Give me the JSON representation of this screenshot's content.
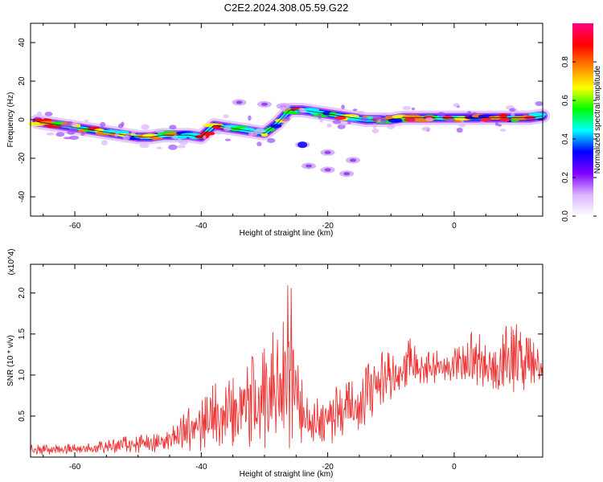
{
  "figure": {
    "title": "C2E2.2024.308.05.59.G22"
  },
  "chart_data": [
    {
      "type": "heatmap",
      "xlabel": "Height of straight line (km)",
      "ylabel": "Frequency (Hz)",
      "xlim": [
        -67,
        14
      ],
      "ylim": [
        -50,
        50
      ],
      "xticks": [
        -60,
        -40,
        -20,
        0
      ],
      "yticks": [
        -40,
        -20,
        0,
        20,
        40
      ],
      "colorbar": {
        "label": "Normalized spectral amplitude",
        "range": [
          0,
          1
        ],
        "ticks": [
          "0.0",
          "0.2",
          "0.4",
          "0.6",
          "0.8"
        ],
        "colormap": [
          "#ffffff",
          "#d9b3ff",
          "#8000ff",
          "#0000ff",
          "#00ffff",
          "#00ff00",
          "#ffff00",
          "#ff8000",
          "#ff0000",
          "#ff0080"
        ]
      },
      "main_band": {
        "x": [
          -66,
          -64,
          -62,
          -60,
          -58,
          -56,
          -54,
          -52,
          -50,
          -48,
          -46,
          -44,
          -42,
          -40,
          -38,
          -36,
          -34,
          -32,
          -30,
          -28,
          -26,
          -24,
          -22,
          -20,
          -18,
          -16,
          -14,
          -12,
          -10,
          -8,
          -6,
          -4,
          -2,
          0,
          2,
          4,
          6,
          8,
          10,
          12,
          14
        ],
        "frequency": [
          -1,
          -2,
          -3,
          -4,
          -5,
          -6,
          -7,
          -8,
          -9,
          -9,
          -8,
          -8,
          -8,
          -9,
          -3,
          -4,
          -5,
          -6,
          -7,
          -2,
          5,
          5,
          4,
          3,
          2,
          1,
          0,
          0,
          0,
          1,
          1,
          1,
          1,
          1,
          1,
          1,
          1,
          1,
          1,
          1,
          2
        ]
      },
      "weak_features": [
        {
          "x": [
            -34,
            -30,
            -27
          ],
          "frequency": [
            9,
            8,
            7
          ]
        },
        {
          "x": [
            -24,
            -20,
            -16
          ],
          "frequency": [
            -13,
            -17,
            -21
          ]
        },
        {
          "x": [
            -23,
            -20,
            -17
          ],
          "frequency": [
            -24,
            -26,
            -28
          ]
        }
      ]
    },
    {
      "type": "line",
      "xlabel": "Height of straight line (km)",
      "ylabel": "SNR (10 * v/v)",
      "scale_label": "(x10^4)",
      "xlim": [
        -67,
        14
      ],
      "ylim": [
        0,
        2.35
      ],
      "xticks": [
        -60,
        -40,
        -20,
        0
      ],
      "yticks": [
        0.5,
        1.0,
        1.5,
        2.0
      ],
      "series": [
        {
          "color": "#ee3333",
          "envelope": {
            "x": [
              -67,
              -62,
              -57,
              -52,
              -47,
              -44,
              -42,
              -40,
              -37,
              -35,
              -33,
              -31,
              -29,
              -27,
              -26,
              -25,
              -23,
              -21,
              -19,
              -17,
              -15,
              -13,
              -11,
              -9,
              -7,
              -5,
              -3,
              -1,
              1,
              3,
              5,
              7,
              9,
              11,
              13,
              14
            ],
            "y": [
              0.15,
              0.15,
              0.17,
              0.25,
              0.28,
              0.4,
              0.6,
              0.75,
              0.95,
              1.05,
              1.3,
              1.15,
              1.5,
              1.65,
              2.3,
              1.2,
              0.65,
              0.75,
              0.85,
              0.9,
              0.95,
              1.2,
              1.3,
              1.2,
              1.45,
              1.2,
              1.35,
              1.3,
              1.35,
              1.55,
              1.45,
              1.35,
              1.75,
              1.45,
              1.45,
              1.1
            ]
          },
          "floor": {
            "x": [
              -67,
              -57,
              -47,
              -42,
              -37,
              -32,
              -27,
              -22,
              -17,
              -12,
              -7,
              -2,
              3,
              8,
              14
            ],
            "y": [
              0.02,
              0.04,
              0.05,
              0.05,
              0.05,
              0.05,
              0.05,
              0.1,
              0.2,
              0.5,
              0.85,
              0.9,
              0.9,
              0.7,
              0.9
            ]
          }
        }
      ]
    }
  ]
}
